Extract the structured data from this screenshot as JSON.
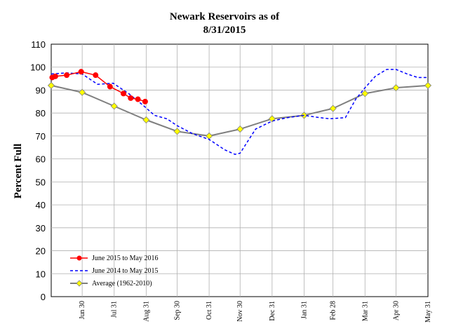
{
  "chart_data": {
    "type": "line",
    "title": "Newark Reservoirs as of",
    "subtitle": "8/31/2015",
    "ylabel": "Percent Full",
    "ylim": [
      0,
      110
    ],
    "yticks": [
      0,
      10,
      20,
      30,
      40,
      50,
      60,
      70,
      80,
      90,
      100,
      110
    ],
    "xlim": [
      0,
      365
    ],
    "grid": true,
    "legend_position": "bottom-left",
    "x_ticks": [
      {
        "label": "Jun 30",
        "day": 30
      },
      {
        "label": "Jul 31",
        "day": 61
      },
      {
        "label": "Aug 31",
        "day": 92
      },
      {
        "label": "Sep 30",
        "day": 122
      },
      {
        "label": "Oct 31",
        "day": 153
      },
      {
        "label": "Nov 30",
        "day": 183
      },
      {
        "label": "Dec 31",
        "day": 214
      },
      {
        "label": "Jan 31",
        "day": 245
      },
      {
        "label": "Feb 28",
        "day": 273
      },
      {
        "label": "Mar 31",
        "day": 304
      },
      {
        "label": "Apr 30",
        "day": 334
      },
      {
        "label": "May 31",
        "day": 365
      }
    ],
    "series": [
      {
        "name": "June 2015 to May 2016",
        "color": "#ff0000",
        "style": "solid-circle-markers",
        "points": [
          [
            1,
            95.5
          ],
          [
            4,
            96
          ],
          [
            15,
            96.5
          ],
          [
            29,
            98
          ],
          [
            43,
            96.5
          ],
          [
            57,
            91.5
          ],
          [
            70,
            88.5
          ],
          [
            77,
            86.5
          ],
          [
            84,
            86
          ],
          [
            91,
            85
          ]
        ]
      },
      {
        "name": "June 2014 to May 2015",
        "color": "#0000ff",
        "style": "dashed",
        "points": [
          [
            0,
            97
          ],
          [
            15,
            97.5
          ],
          [
            30,
            97
          ],
          [
            45,
            92.5
          ],
          [
            60,
            93
          ],
          [
            75,
            88.5
          ],
          [
            90,
            83
          ],
          [
            100,
            79
          ],
          [
            112,
            77.5
          ],
          [
            122,
            74.5
          ],
          [
            137,
            71
          ],
          [
            153,
            68.5
          ],
          [
            168,
            64
          ],
          [
            178,
            62
          ],
          [
            183,
            62.5
          ],
          [
            198,
            73
          ],
          [
            214,
            76.5
          ],
          [
            229,
            78
          ],
          [
            245,
            79
          ],
          [
            260,
            78
          ],
          [
            270,
            77.5
          ],
          [
            285,
            78
          ],
          [
            295,
            86
          ],
          [
            304,
            91
          ],
          [
            314,
            96
          ],
          [
            325,
            99
          ],
          [
            334,
            99
          ],
          [
            345,
            97
          ],
          [
            355,
            95.5
          ],
          [
            365,
            95.5
          ]
        ]
      },
      {
        "name": "Average (1962-2010)",
        "color": "#7f7f7f",
        "style": "solid-diamond-markers",
        "marker_color": "#ffff00",
        "points": [
          [
            0,
            92
          ],
          [
            30,
            89
          ],
          [
            61,
            83
          ],
          [
            92,
            77
          ],
          [
            122,
            72
          ],
          [
            153,
            70
          ],
          [
            183,
            73
          ],
          [
            214,
            77.5
          ],
          [
            245,
            79
          ],
          [
            273,
            82
          ],
          [
            304,
            88.5
          ],
          [
            334,
            91
          ],
          [
            365,
            92
          ]
        ]
      }
    ]
  }
}
